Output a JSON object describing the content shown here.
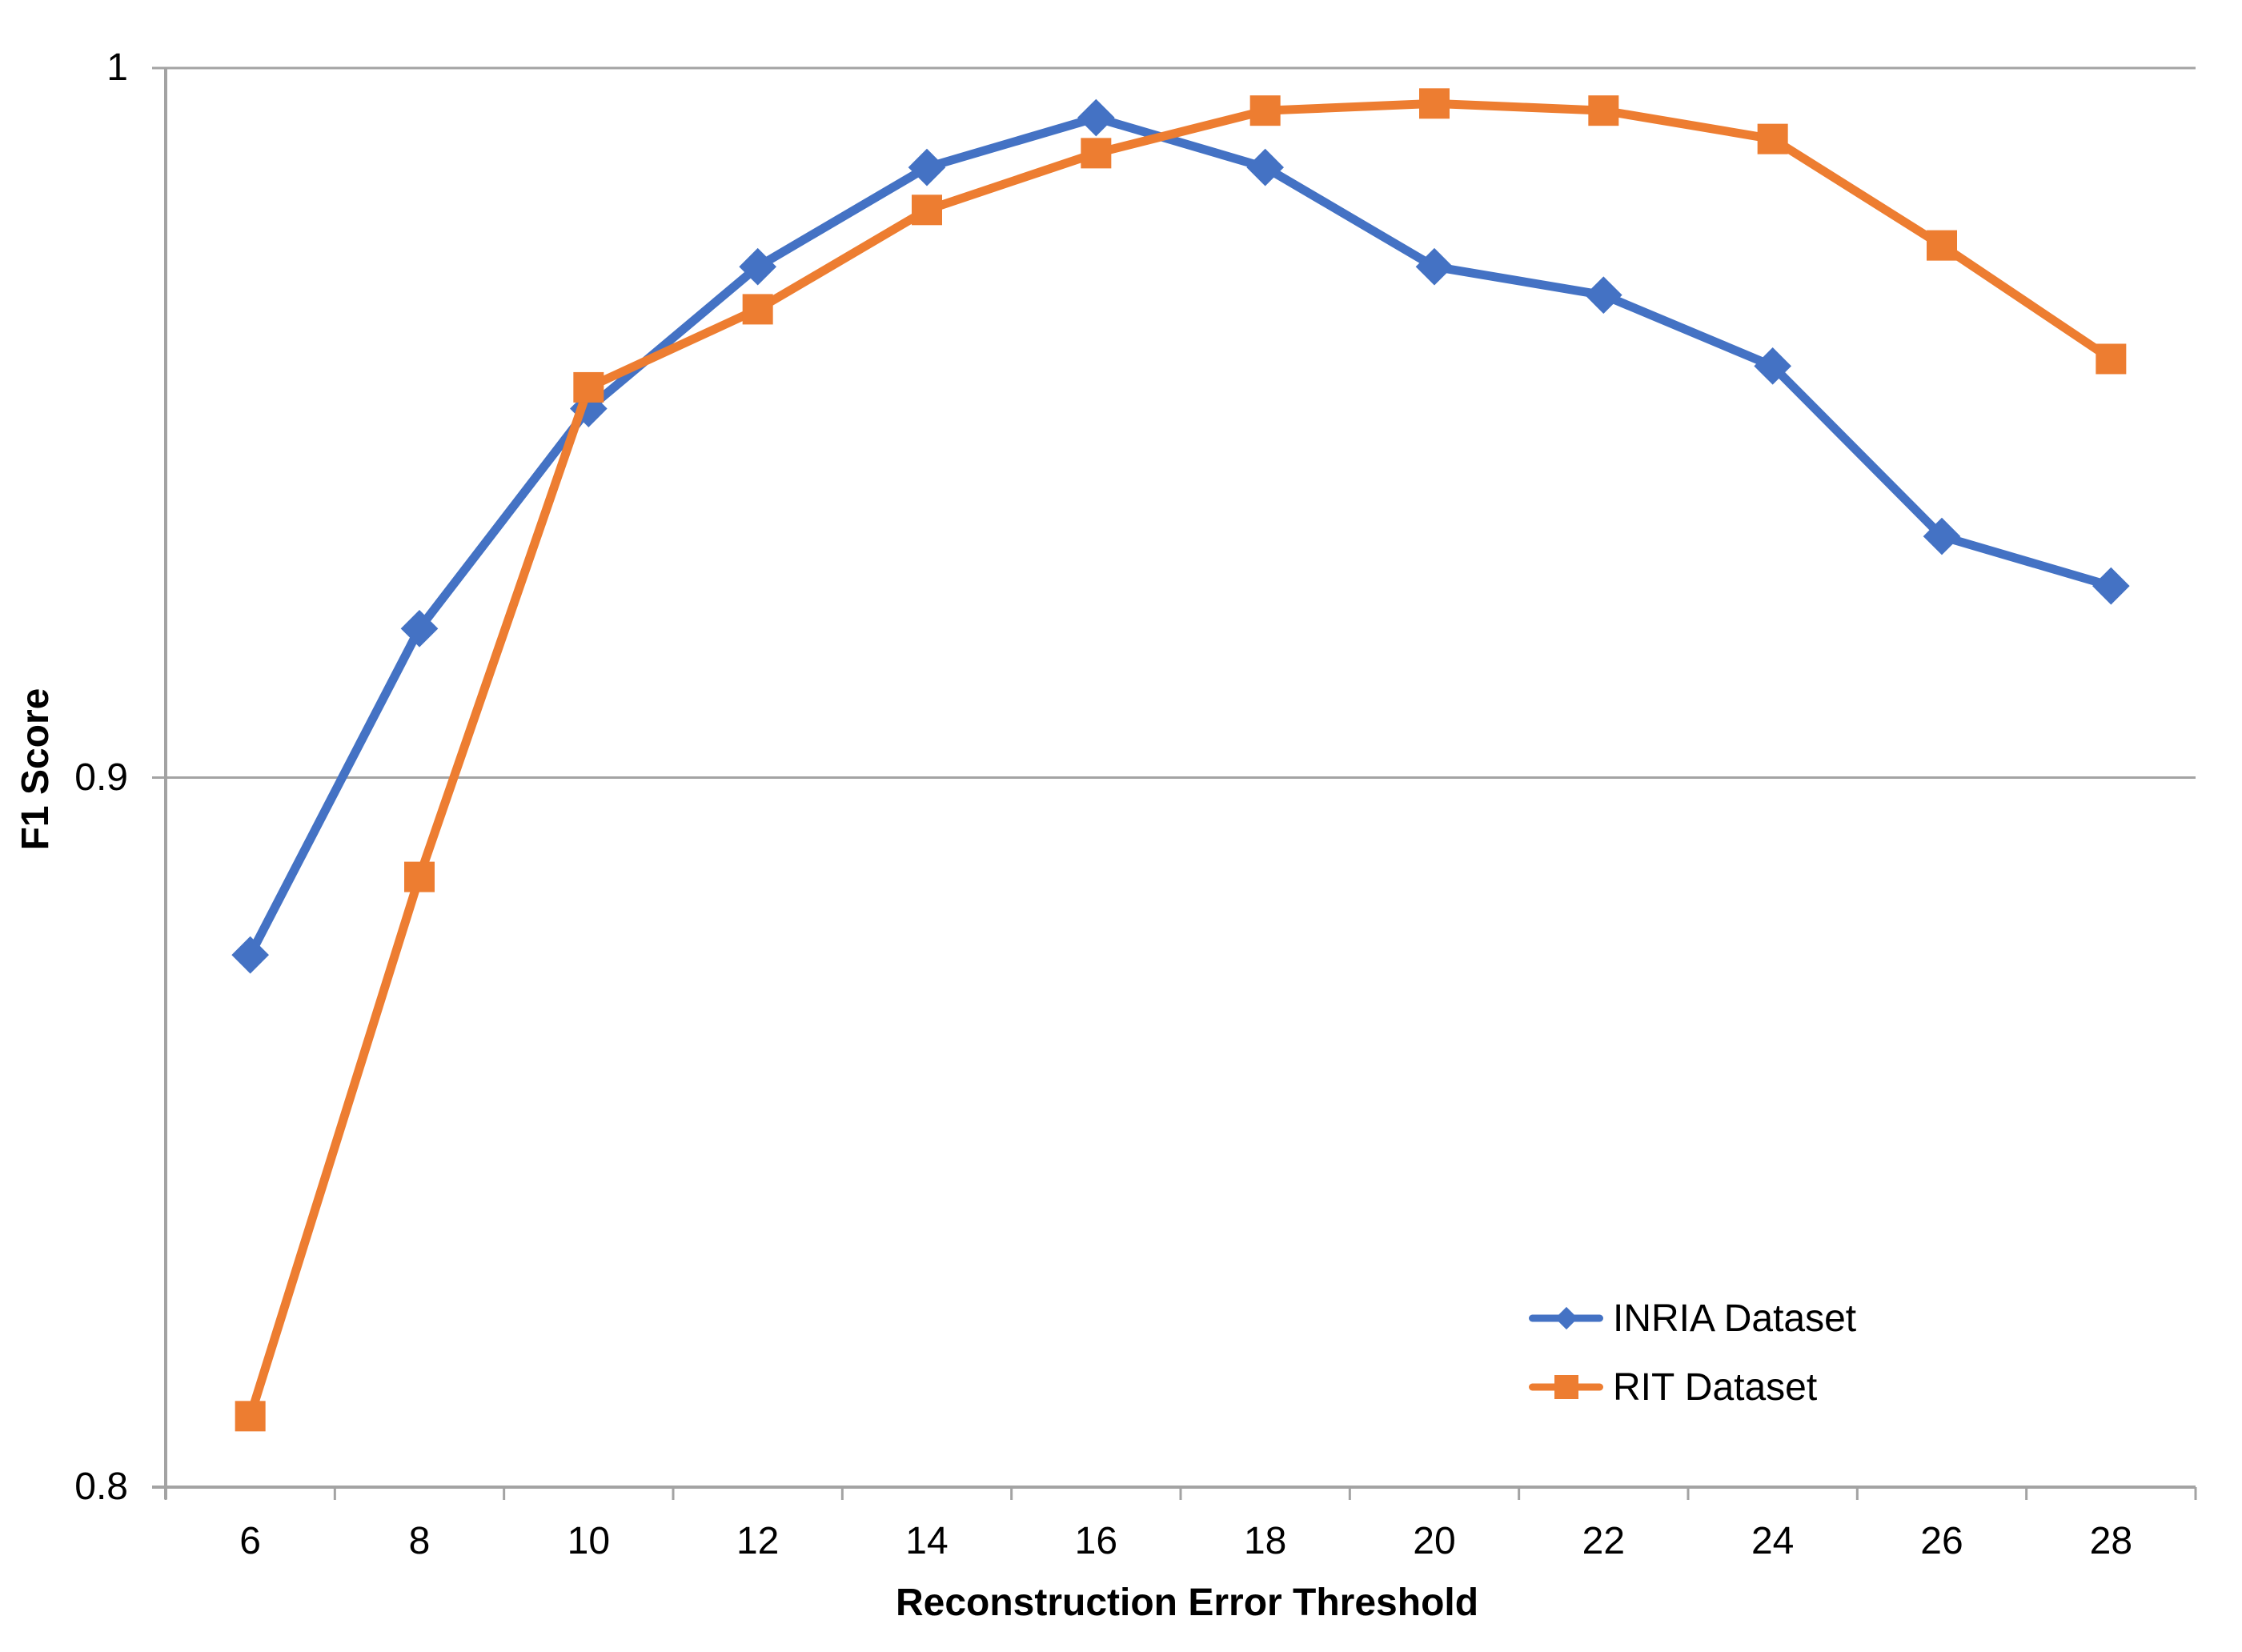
{
  "chart_data": {
    "type": "line",
    "title": "",
    "xlabel": "Reconstruction Error Threshold",
    "ylabel": "F1 Score",
    "categories": [
      6,
      8,
      10,
      12,
      14,
      16,
      18,
      20,
      22,
      24,
      26,
      28
    ],
    "x_tick_labels": [
      "6",
      "8",
      "10",
      "12",
      "14",
      "16",
      "18",
      "20",
      "22",
      "24",
      "26",
      "28"
    ],
    "ylim": [
      0.8,
      1.0
    ],
    "y_ticks": [
      {
        "label": "0.8",
        "value": 0.8
      },
      {
        "label": "0.9",
        "value": 0.9
      },
      {
        "label": "1",
        "value": 1.0
      }
    ],
    "gridline_values": [
      0.9,
      1.0
    ],
    "grid": "horizontal-only",
    "legend_position": "inside-bottom-right",
    "series": [
      {
        "name": "INRIA Dataset",
        "color": "#4472C4",
        "marker": "diamond",
        "values": [
          0.875,
          0.921,
          0.952,
          0.972,
          0.986,
          0.993,
          0.986,
          0.972,
          0.968,
          0.958,
          0.934,
          0.927
        ]
      },
      {
        "name": "RIT Dataset",
        "color": "#ED7D31",
        "marker": "square",
        "values": [
          0.81,
          0.886,
          0.955,
          0.966,
          0.98,
          0.988,
          0.994,
          0.995,
          0.994,
          0.99,
          0.975,
          0.959
        ]
      }
    ]
  },
  "colors": {
    "background": "#FFFFFF",
    "axis_line": "#A3A3A3",
    "gridline": "#A3A3A3",
    "text": "#000000"
  }
}
